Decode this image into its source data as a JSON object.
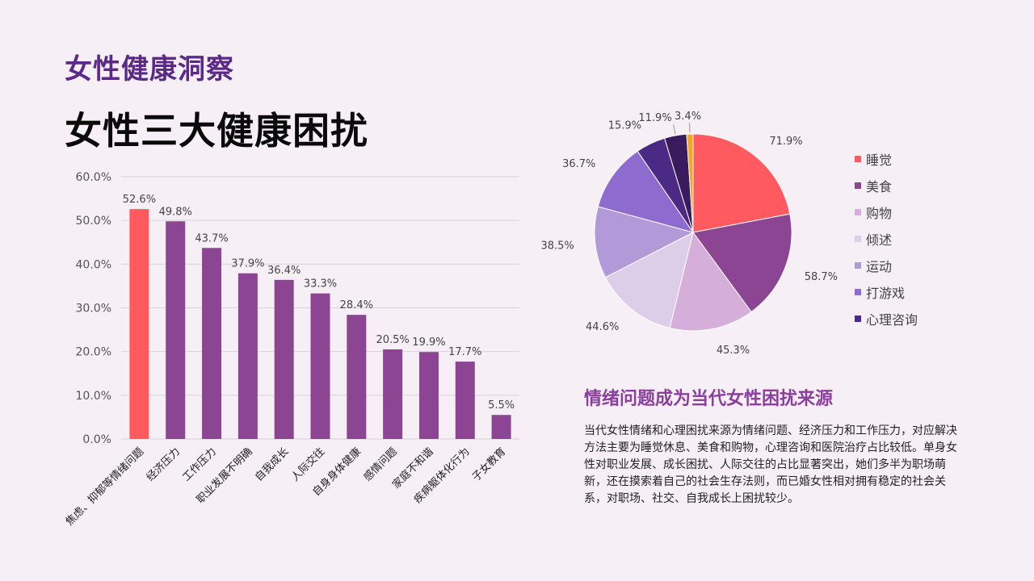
{
  "header": {
    "kicker": "女性健康洞察",
    "title": "女性三大健康困扰"
  },
  "chart_data": [
    {
      "type": "bar",
      "categories": [
        "焦虑、抑郁等情绪问题",
        "经济压力",
        "工作压力",
        "职业发展不明确",
        "自我成长",
        "人际交往",
        "自身身体健康",
        "感情问题",
        "家庭不和谐",
        "疾病躯体化行为",
        "子女教育"
      ],
      "values": [
        52.6,
        49.8,
        43.7,
        37.9,
        36.4,
        33.3,
        28.4,
        20.5,
        19.9,
        17.7,
        5.5
      ],
      "value_labels": [
        "52.6%",
        "49.8%",
        "43.7%",
        "37.9%",
        "36.4%",
        "33.3%",
        "28.4%",
        "20.5%",
        "19.9%",
        "17.7%",
        "5.5%"
      ],
      "y_ticks": [
        "0.0%",
        "10.0%",
        "20.0%",
        "30.0%",
        "40.0%",
        "50.0%",
        "60.0%"
      ],
      "ylim": [
        0,
        60
      ],
      "grid": true,
      "colors": {
        "highlight": "#ff5a5f",
        "default": "#8b4593"
      }
    },
    {
      "type": "pie",
      "legend_position": "right",
      "slices": [
        {
          "name": "睡觉",
          "value": 71.9,
          "label": "71.9%",
          "color": "#ff5a5f"
        },
        {
          "name": "美食",
          "value": 58.7,
          "label": "58.7%",
          "color": "#8b4593"
        },
        {
          "name": "购物",
          "value": 45.3,
          "label": "45.3%",
          "color": "#d5aed9"
        },
        {
          "name": "倾述",
          "value": 44.6,
          "label": "44.6%",
          "color": "#dccde9"
        },
        {
          "name": "运动",
          "value": 38.5,
          "label": "38.5%",
          "color": "#b29ad8"
        },
        {
          "name": "打游戏",
          "value": 36.7,
          "label": "36.7%",
          "color": "#8d6bcf"
        },
        {
          "name": "心理咨询",
          "value": 15.9,
          "label": "15.9%",
          "color": "#4b2a85"
        },
        {
          "name": "",
          "value": 11.9,
          "label": "11.9%",
          "color": "#3a1c5e"
        },
        {
          "name": "",
          "value": 3.4,
          "label": "3.4%",
          "color": "#f5a623"
        }
      ]
    }
  ],
  "insight": {
    "title": "情绪问题成为当代女性困扰来源",
    "body": "当代女性情绪和心理困扰来源为情绪问题、经济压力和工作压力，对应解决方法主要为睡觉休息、美食和购物，心理咨询和医院治疗占比较低。单身女性对职业发展、成长困扰、人际交往的占比显著突出，她们多半为职场萌新，还在摸索着自己的社会生存法则，而已婚女性相对拥有稳定的社会关系，对职场、社交、自我成长上困扰较少。"
  }
}
